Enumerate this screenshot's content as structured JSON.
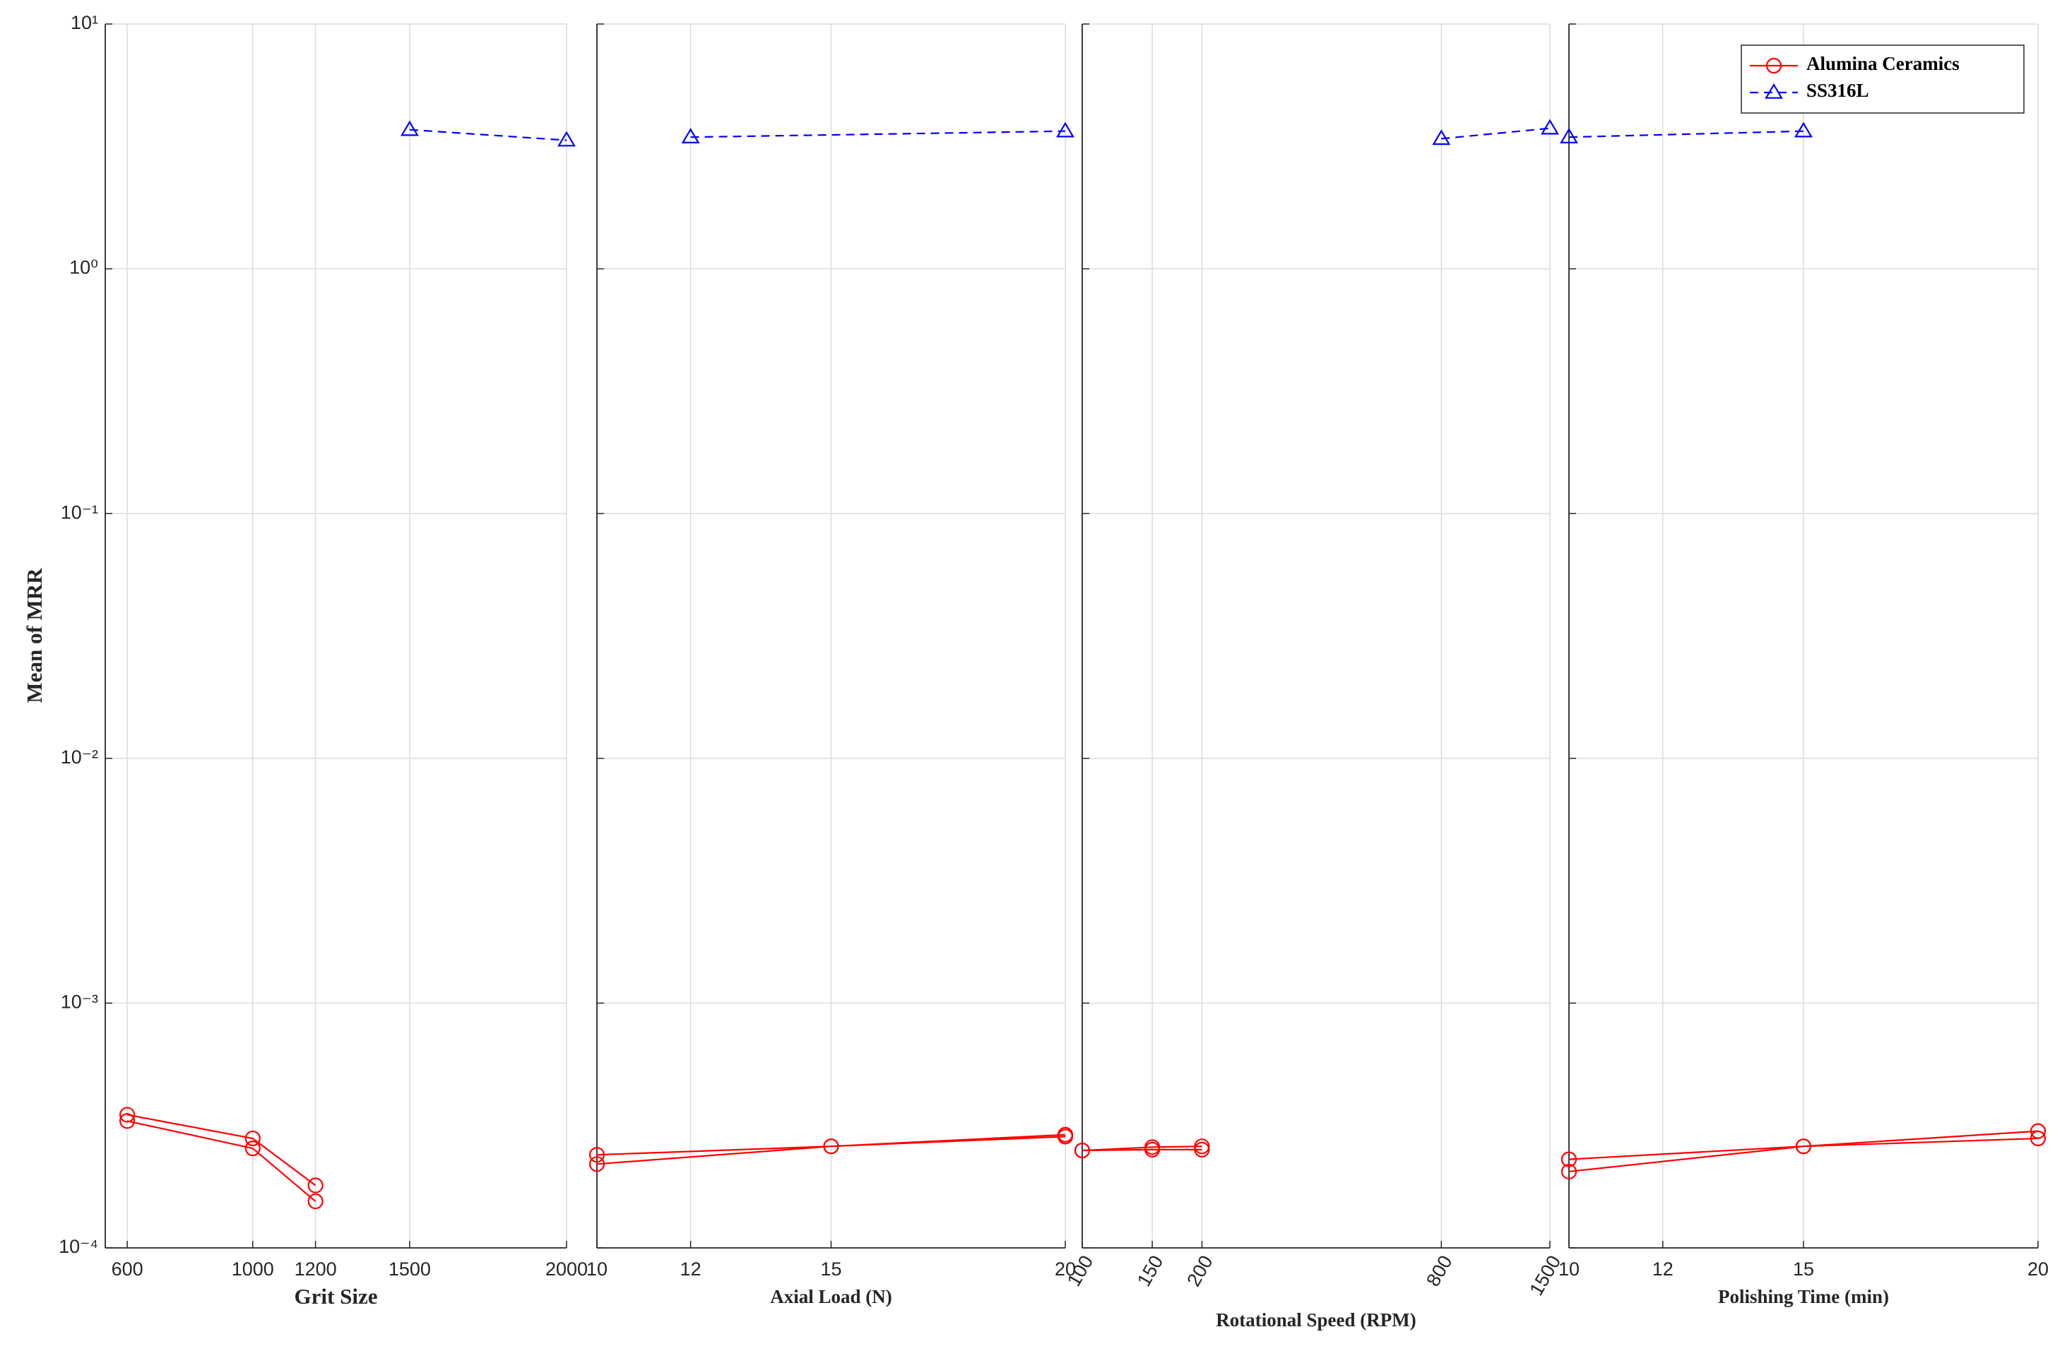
{
  "chart_data": [
    {
      "type": "line",
      "xlabel": "Grit Size",
      "ylabel": "Mean of MRR",
      "xlim": [
        530,
        2000
      ],
      "xticks": [
        600,
        1000,
        1200,
        1500,
        2000
      ],
      "ylim": [
        0.0001,
        10
      ],
      "ylog": true,
      "yticks": [
        {
          "value": 0.0001,
          "label": "10⁻⁴"
        },
        {
          "value": 0.001,
          "label": "10⁻³"
        },
        {
          "value": 0.01,
          "label": "10⁻²"
        },
        {
          "value": 0.1,
          "label": "10⁻¹"
        },
        {
          "value": 1,
          "label": "10⁰"
        },
        {
          "value": 10,
          "label": "10¹"
        }
      ],
      "grid": true,
      "series": [
        {
          "color": "#ff0000",
          "linestyle": "solid",
          "marker": "circle",
          "x": [
            600,
            1000,
            1200,
            null,
            600,
            1000,
            1200
          ],
          "values": [
            0.00035,
            0.00028,
            0.00018,
            null,
            0.00033,
            0.000255,
            0.000155
          ]
        },
        {
          "color": "#0000ff",
          "linestyle": "dashed",
          "marker": "triangle",
          "x": [
            1500,
            2000
          ],
          "values": [
            3.7,
            3.35
          ]
        }
      ]
    },
    {
      "type": "line",
      "xlabel": "Axial Load (N)",
      "xlim": [
        10,
        20
      ],
      "xticks": [
        10,
        12,
        15,
        20
      ],
      "grid": true,
      "series": [
        {
          "color": "#ff0000",
          "linestyle": "solid",
          "marker": "circle",
          "x": [
            10,
            15,
            20,
            null,
            10,
            15,
            20
          ],
          "values": [
            0.00024,
            0.00026,
            0.000285,
            null,
            0.00022,
            0.00026,
            0.00029
          ]
        },
        {
          "color": "#0000ff",
          "linestyle": "dashed",
          "marker": "triangle",
          "x": [
            12,
            20
          ],
          "values": [
            3.45,
            3.65
          ]
        }
      ]
    },
    {
      "type": "line",
      "xlabel": "Rotational Speed (RPM)",
      "xlim": [
        100,
        1500
      ],
      "xlog": true,
      "xtick_rotation": -60,
      "xticks": [
        100,
        150,
        200,
        800,
        1500
      ],
      "grid": true,
      "series": [
        {
          "color": "#ff0000",
          "linestyle": "solid",
          "marker": "circle",
          "x": [
            100,
            150,
            200,
            null,
            100,
            150,
            200
          ],
          "values": [
            0.00025,
            0.000258,
            0.00026,
            null,
            0.00025,
            0.000252,
            0.000252
          ]
        },
        {
          "color": "#0000ff",
          "linestyle": "dashed",
          "marker": "triangle",
          "x": [
            800,
            1500
          ],
          "values": [
            3.4,
            3.75
          ]
        }
      ]
    },
    {
      "type": "line",
      "xlabel": "Polishing Time (min)",
      "xlim": [
        10,
        20
      ],
      "xticks": [
        10,
        12,
        15,
        20
      ],
      "grid": true,
      "legend": "upper right",
      "series": [
        {
          "name": "Alumina Ceramics",
          "color": "#ff0000",
          "linestyle": "solid",
          "marker": "circle",
          "x": [
            10,
            15,
            20,
            null,
            10,
            15,
            20
          ],
          "values": [
            0.00023,
            0.00026,
            0.00028,
            null,
            0.000205,
            0.00026,
            0.0003
          ]
        },
        {
          "name": "SS316L",
          "color": "#0000ff",
          "linestyle": "dashed",
          "marker": "triangle",
          "x": [
            10,
            15
          ],
          "values": [
            3.45,
            3.65
          ]
        }
      ]
    }
  ]
}
